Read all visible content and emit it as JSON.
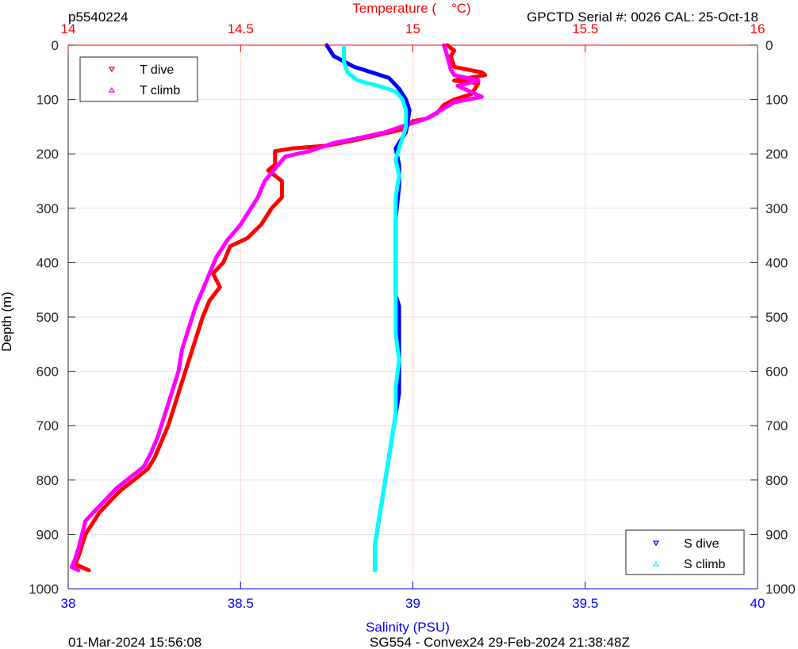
{
  "header": {
    "profile_id": "p5540224",
    "sensor_info": "GPCTD Serial #: 0026 CAL: 25-Oct-18"
  },
  "footer": {
    "left": "01-Mar-2024 15:56:08",
    "center": "SG554 - Convex24 29-Feb-2024 21:38:48Z"
  },
  "colors": {
    "t_dive": "#ff0000",
    "t_climb": "#ff00ff",
    "s_dive": "#0000ff",
    "s_climb": "#00ffff",
    "temp_axis": "#ff0000",
    "sal_axis": "#0000ff",
    "depth_axis": "#000000"
  },
  "chart_data": {
    "type": "line",
    "grid": true,
    "ylabel": "Depth (m)",
    "ylim": [
      0,
      1000
    ],
    "y_reversed": true,
    "y_ticks": [
      "0",
      "100",
      "200",
      "300",
      "400",
      "500",
      "600",
      "700",
      "800",
      "900",
      "1000"
    ],
    "top_axis": {
      "label": "Temperature (    °C)",
      "range": [
        14,
        16
      ],
      "ticks": [
        "14",
        "14.5",
        "15",
        "15.5",
        "16"
      ]
    },
    "bottom_axis": {
      "label": "Salinity (PSU)",
      "range": [
        38,
        40
      ],
      "ticks": [
        "38",
        "38.5",
        "39",
        "39.5",
        "40"
      ]
    },
    "legend_temperature": {
      "placement": "top-left",
      "entries": [
        "T dive",
        "T climb"
      ]
    },
    "legend_salinity": {
      "placement": "bottom-right",
      "entries": [
        "S dive",
        "S climb"
      ]
    },
    "series": [
      {
        "name": "T dive",
        "axis": "temperature",
        "points": [
          [
            15.1,
            0
          ],
          [
            15.12,
            10
          ],
          [
            15.11,
            20
          ],
          [
            15.12,
            40
          ],
          [
            15.2,
            50
          ],
          [
            15.21,
            55
          ],
          [
            15.12,
            65
          ],
          [
            15.19,
            70
          ],
          [
            15.17,
            90
          ],
          [
            15.12,
            100
          ],
          [
            15.09,
            110
          ],
          [
            15.07,
            125
          ],
          [
            15.04,
            135
          ],
          [
            15.0,
            140
          ],
          [
            14.97,
            155
          ],
          [
            14.9,
            165
          ],
          [
            14.83,
            175
          ],
          [
            14.75,
            185
          ],
          [
            14.65,
            190
          ],
          [
            14.6,
            195
          ],
          [
            14.6,
            220
          ],
          [
            14.58,
            230
          ],
          [
            14.62,
            250
          ],
          [
            14.62,
            280
          ],
          [
            14.59,
            300
          ],
          [
            14.56,
            330
          ],
          [
            14.52,
            355
          ],
          [
            14.47,
            370
          ],
          [
            14.45,
            400
          ],
          [
            14.42,
            420
          ],
          [
            14.44,
            445
          ],
          [
            14.41,
            470
          ],
          [
            14.39,
            500
          ],
          [
            14.37,
            540
          ],
          [
            14.35,
            580
          ],
          [
            14.33,
            620
          ],
          [
            14.31,
            660
          ],
          [
            14.29,
            700
          ],
          [
            14.27,
            730
          ],
          [
            14.25,
            760
          ],
          [
            14.23,
            780
          ],
          [
            14.19,
            800
          ],
          [
            14.15,
            820
          ],
          [
            14.12,
            840
          ],
          [
            14.09,
            860
          ],
          [
            14.07,
            880
          ],
          [
            14.05,
            900
          ],
          [
            14.04,
            920
          ],
          [
            14.03,
            940
          ],
          [
            14.02,
            955
          ],
          [
            14.06,
            966
          ]
        ]
      },
      {
        "name": "T climb",
        "axis": "temperature",
        "points": [
          [
            15.09,
            0
          ],
          [
            15.1,
            20
          ],
          [
            15.11,
            45
          ],
          [
            15.12,
            55
          ],
          [
            15.19,
            65
          ],
          [
            15.13,
            75
          ],
          [
            15.2,
            95
          ],
          [
            15.12,
            105
          ],
          [
            15.08,
            120
          ],
          [
            15.04,
            135
          ],
          [
            14.99,
            145
          ],
          [
            14.92,
            160
          ],
          [
            14.85,
            170
          ],
          [
            14.77,
            180
          ],
          [
            14.7,
            195
          ],
          [
            14.63,
            205
          ],
          [
            14.61,
            220
          ],
          [
            14.57,
            250
          ],
          [
            14.55,
            280
          ],
          [
            14.53,
            300
          ],
          [
            14.5,
            330
          ],
          [
            14.46,
            360
          ],
          [
            14.43,
            390
          ],
          [
            14.41,
            420
          ],
          [
            14.39,
            450
          ],
          [
            14.37,
            480
          ],
          [
            14.35,
            520
          ],
          [
            14.33,
            560
          ],
          [
            14.32,
            600
          ],
          [
            14.3,
            640
          ],
          [
            14.28,
            680
          ],
          [
            14.26,
            720
          ],
          [
            14.24,
            750
          ],
          [
            14.22,
            775
          ],
          [
            14.18,
            795
          ],
          [
            14.14,
            815
          ],
          [
            14.11,
            835
          ],
          [
            14.08,
            855
          ],
          [
            14.05,
            875
          ],
          [
            14.04,
            900
          ],
          [
            14.03,
            925
          ],
          [
            14.02,
            945
          ],
          [
            14.01,
            960
          ],
          [
            14.03,
            966
          ]
        ]
      },
      {
        "name": "S dive",
        "axis": "salinity",
        "points": [
          [
            38.75,
            0
          ],
          [
            38.77,
            20
          ],
          [
            38.83,
            40
          ],
          [
            38.88,
            50
          ],
          [
            38.93,
            60
          ],
          [
            38.96,
            80
          ],
          [
            38.98,
            100
          ],
          [
            38.99,
            120
          ],
          [
            38.98,
            160
          ],
          [
            38.96,
            180
          ],
          [
            38.95,
            190
          ],
          [
            38.96,
            220
          ],
          [
            38.96,
            260
          ],
          [
            38.95,
            320
          ],
          [
            38.95,
            380
          ],
          [
            38.95,
            420
          ],
          [
            38.95,
            460
          ],
          [
            38.96,
            480
          ],
          [
            38.96,
            520
          ],
          [
            38.96,
            560
          ],
          [
            38.96,
            600
          ],
          [
            38.96,
            640
          ],
          [
            38.95,
            680
          ],
          [
            38.94,
            720
          ],
          [
            38.93,
            760
          ],
          [
            38.92,
            800
          ],
          [
            38.91,
            840
          ],
          [
            38.9,
            880
          ],
          [
            38.89,
            920
          ],
          [
            38.89,
            966
          ]
        ]
      },
      {
        "name": "S climb",
        "axis": "salinity",
        "points": [
          [
            38.8,
            5
          ],
          [
            38.8,
            30
          ],
          [
            38.81,
            50
          ],
          [
            38.84,
            65
          ],
          [
            38.9,
            75
          ],
          [
            38.95,
            85
          ],
          [
            38.97,
            100
          ],
          [
            38.98,
            120
          ],
          [
            38.98,
            150
          ],
          [
            38.97,
            170
          ],
          [
            38.96,
            190
          ],
          [
            38.95,
            210
          ],
          [
            38.96,
            240
          ],
          [
            38.95,
            280
          ],
          [
            38.95,
            330
          ],
          [
            38.95,
            380
          ],
          [
            38.95,
            430
          ],
          [
            38.95,
            480
          ],
          [
            38.95,
            530
          ],
          [
            38.96,
            580
          ],
          [
            38.95,
            630
          ],
          [
            38.95,
            680
          ],
          [
            38.94,
            720
          ],
          [
            38.93,
            760
          ],
          [
            38.92,
            800
          ],
          [
            38.91,
            840
          ],
          [
            38.9,
            880
          ],
          [
            38.89,
            920
          ],
          [
            38.89,
            966
          ]
        ]
      }
    ]
  }
}
